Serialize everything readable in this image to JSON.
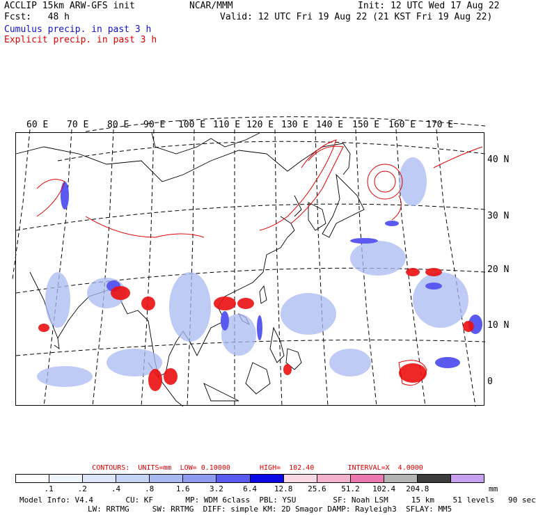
{
  "header": {
    "model": "ACCLIP 15km ARW-GFS init",
    "org": "NCAR/MMM",
    "init": "Init: 12 UTC Wed 17 Aug 22",
    "fcst": "Fcst:   48 h",
    "valid": "Valid: 12 UTC Fri 19 Aug 22 (21 KST Fri 19 Aug 22)",
    "cumulus": "Cumulus precip. in past 3 h",
    "explicit": "Explicit precip. in past 3 h"
  },
  "colors": {
    "cumulus": "#1010c8",
    "explicit": "#e00000"
  },
  "longitudes": [
    "60 E",
    "70 E",
    "80 E",
    "90 E",
    "100 E",
    "110 E",
    "120 E",
    "130 E",
    "140 E",
    "150 E",
    "160 E",
    "170 E"
  ],
  "latitudes": [
    "40 N",
    "30 N",
    "20 N",
    "10 N",
    "0"
  ],
  "contours": "CONTOURS:  UNITS=mm  LOW= 0.10000       HIGH=  102.40        INTERVAL=X  4.0000",
  "legend": {
    "colors": [
      "#ffffff",
      "#f0f4fc",
      "#dde6f8",
      "#c6d4f5",
      "#a9baf2",
      "#8c9af0",
      "#5a5af0",
      "#0a0ae6",
      "#f8d8e4",
      "#f4b2cc",
      "#ec78b0",
      "#b4b4b4",
      "#3c3c3c",
      "#c8a0f0"
    ],
    "ticks": [
      ".1",
      ".2",
      ".4",
      ".8",
      "1.6",
      "3.2",
      "6.4",
      "12.8",
      "25.6",
      "51.2",
      "102.4",
      "204.8"
    ],
    "unit": "mm"
  },
  "footer": {
    "line1": "Model Info: V4.4       CU: KF       MP: WDM 6class  PBL: YSU        SF: Noah LSM     15 km    51 levels   90 sec",
    "line2": "LW: RRTMG     SW: RRTMG  DIFF: simple KM: 2D Smagor DAMP: Rayleigh3  SFLAY: MM5"
  }
}
